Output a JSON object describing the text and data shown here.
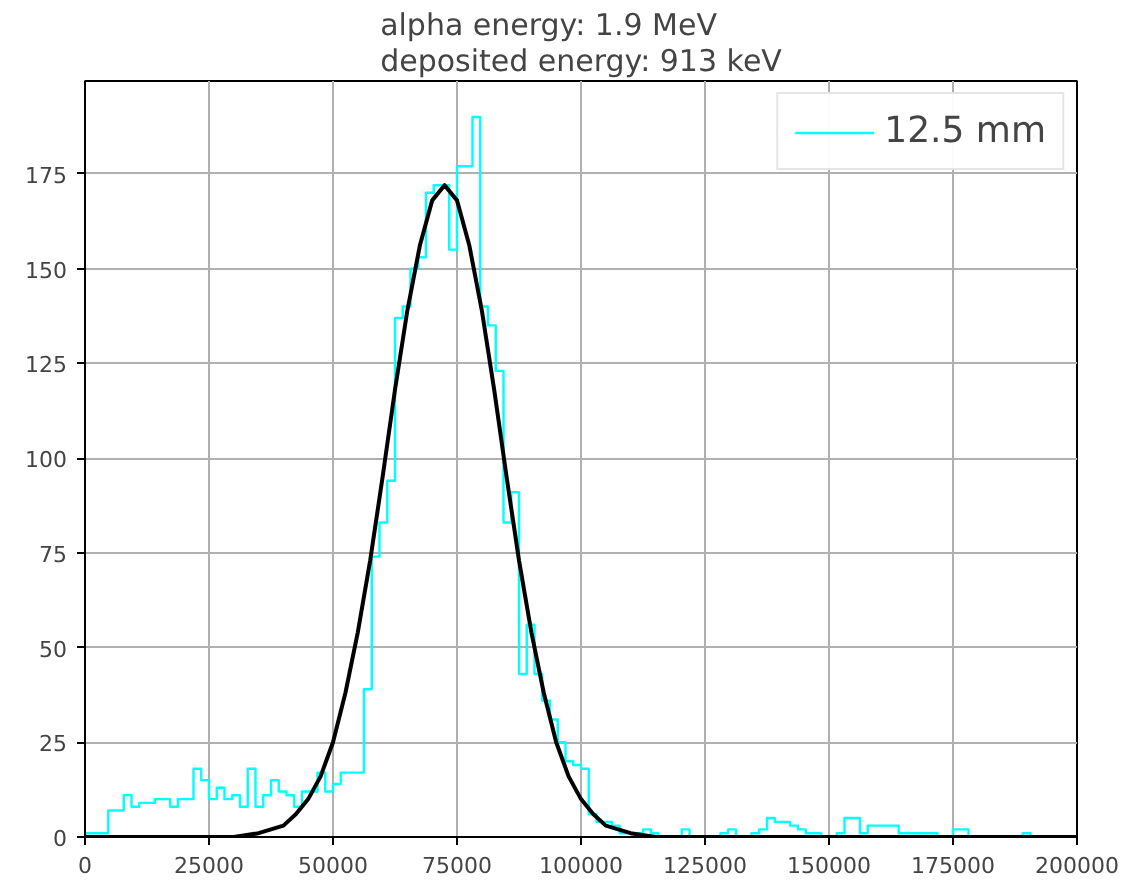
{
  "chart_data": {
    "type": "histogram",
    "title": "alpha energy: 1.9 MeV\ndeposited energy: 913 keV",
    "bins": [
      0,
      1562.5,
      3125,
      4687.5,
      6250,
      7812.5,
      9375,
      10937.5,
      12500,
      14062.5,
      15625,
      17187.5,
      18750,
      20312.5,
      21875,
      23437.5,
      25000,
      26562.5,
      28125,
      29687.5,
      31250,
      32812.5,
      34375,
      35937.5,
      37500,
      39062.5,
      40625,
      42187.5,
      43750,
      45312.5,
      46875,
      48437.5,
      50000,
      51562.5,
      53125,
      54687.5,
      56250,
      57812.5,
      59375,
      60937.5,
      62500,
      64062.5,
      65625,
      67187.5,
      68750,
      70312.5,
      71875,
      73437.5,
      75000,
      76562.5,
      78125,
      79687.5,
      81250,
      82812.5,
      84375,
      85937.5,
      87500,
      89062.5,
      90625,
      92187.5,
      93750,
      95312.5,
      96875,
      98437.5,
      100000,
      101562.5,
      103125,
      104687.5,
      106250,
      107812.5,
      109375,
      110937.5,
      112500,
      114062.5,
      115625,
      117187.5,
      118750,
      120312.5,
      121875,
      123437.5,
      125000,
      126562.5,
      128125,
      129687.5,
      131250,
      132812.5,
      134375,
      135937.5,
      137500,
      139062.5,
      140625,
      142187.5,
      143750,
      145312.5,
      146875,
      148437.5,
      150000,
      151562.5,
      153125,
      154687.5,
      156250,
      157812.5,
      159375,
      160937.5,
      162500,
      164062.5,
      165625,
      167187.5,
      168750,
      170312.5,
      171875,
      173437.5,
      175000,
      176562.5,
      178125,
      179687.5,
      181250,
      182812.5,
      184375,
      185937.5,
      187500,
      189062.5,
      190625,
      192187.5,
      193750,
      195312.5,
      196875,
      198437.5,
      200000
    ],
    "series": [
      {
        "name": "12.5 mm",
        "color": "#00ffff",
        "values": [
          1,
          1,
          1,
          7,
          7,
          11,
          8,
          9,
          9,
          10,
          10,
          8,
          10,
          10,
          18,
          15,
          10,
          13,
          10,
          11,
          8,
          18,
          8,
          11,
          15,
          12,
          11,
          8,
          12,
          12,
          17,
          12,
          14,
          17,
          17,
          17,
          39,
          74,
          83,
          94,
          137,
          140,
          150,
          153,
          170,
          172,
          172,
          155,
          177,
          177,
          190,
          140,
          135,
          123,
          83,
          91,
          43,
          56,
          43,
          36,
          31,
          25,
          20,
          19,
          18,
          6,
          4,
          4,
          3,
          1,
          1,
          1,
          2,
          1,
          0,
          0,
          0,
          2,
          0,
          0,
          0,
          0,
          1,
          2,
          0,
          0,
          1,
          2,
          5,
          4,
          4,
          3,
          2,
          1,
          1,
          0,
          0,
          1,
          5,
          5,
          1,
          3,
          3,
          3,
          3,
          1,
          1,
          1,
          1,
          1,
          0,
          0,
          2,
          2,
          0,
          0,
          0,
          0,
          0,
          0,
          0,
          1,
          0,
          0,
          0,
          0,
          0,
          0
        ]
      },
      {
        "type": "line",
        "color": "#000000",
        "x": [
          0,
          20000,
          30000,
          35000,
          40000,
          42500,
          45000,
          47500,
          50000,
          52500,
          55000,
          57500,
          60000,
          62500,
          65000,
          67500,
          70000,
          72500,
          75000,
          77500,
          80000,
          82500,
          85000,
          87500,
          90000,
          92500,
          95000,
          97500,
          100000,
          102500,
          105000,
          110000,
          115000,
          125000,
          200000
        ],
        "values": [
          0,
          0,
          0,
          1,
          3,
          6,
          10,
          16,
          25,
          38,
          54,
          73,
          95,
          118,
          139,
          156,
          168,
          172,
          168,
          156,
          139,
          118,
          95,
          73,
          54,
          38,
          25,
          16,
          10,
          6,
          3,
          1,
          0,
          0,
          0
        ]
      }
    ],
    "xlim": [
      0,
      200000
    ],
    "ylim": [
      0,
      199.5
    ],
    "xticks": [
      0,
      25000,
      50000,
      75000,
      100000,
      125000,
      150000,
      175000,
      200000
    ],
    "yticks": [
      0,
      25,
      50,
      75,
      100,
      125,
      150,
      175
    ],
    "grid": true,
    "legend": "top right",
    "line_style": "solid"
  }
}
